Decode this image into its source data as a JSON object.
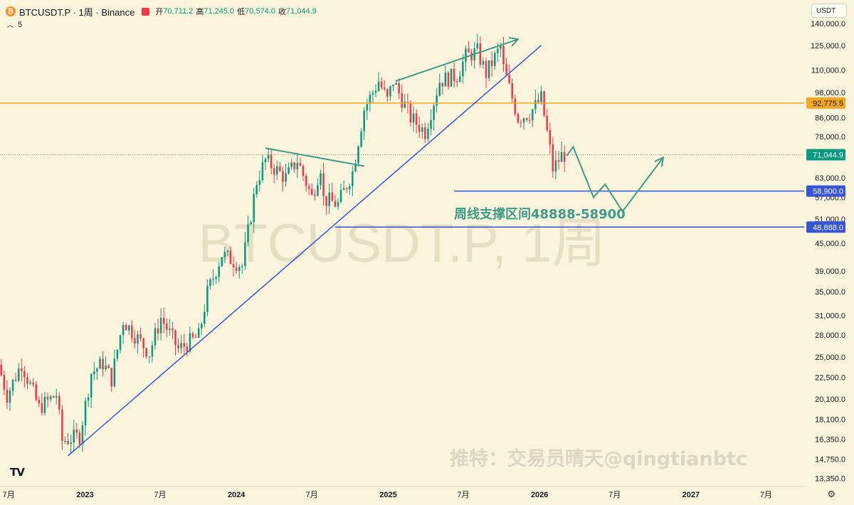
{
  "header": {
    "symbol": "BTCUSDT.P · 1周 · Binance",
    "icon": "bitcoin-icon",
    "ohlc": [
      {
        "key": "开",
        "value": "70,711.2"
      },
      {
        "key": "高",
        "value": "71,245.0"
      },
      {
        "key": "低",
        "value": "70,574.0"
      },
      {
        "key": "收",
        "value": "71,044.9"
      }
    ]
  },
  "indicator": {
    "value": "5"
  },
  "currency": {
    "selected": "USDT"
  },
  "watermark": {
    "text": "BTCUSDT.P, 1周"
  },
  "signature": {
    "text": "推特：交易员晴天@qingtianbtc"
  },
  "annotation": {
    "text": "周线支撑区间48888-58900"
  },
  "colors": {
    "background": "#faf4dc",
    "up": "#089981",
    "down": "#f23645",
    "trendline": "#3654d8",
    "resistance": "#f5a623",
    "projection": "#3f9a86"
  },
  "chart_data": {
    "type": "candlestick",
    "y_scale": "log",
    "ylim": [
      12800,
      158000
    ],
    "x_range": [
      "2022-06-10",
      "2027-10-01"
    ],
    "y_ticks": [
      {
        "value": 140000,
        "label": "140,000.0"
      },
      {
        "value": 125000,
        "label": "125,000.0"
      },
      {
        "value": 110000,
        "label": "110,000.0"
      },
      {
        "value": 98000,
        "label": "98,000.0"
      },
      {
        "value": 86000,
        "label": "86,000.0"
      },
      {
        "value": 78000,
        "label": "78,000.0"
      },
      {
        "value": 63000,
        "label": "63,000.0"
      },
      {
        "value": 57000,
        "label": "57,000.0"
      },
      {
        "value": 51000,
        "label": "51,000.0"
      },
      {
        "value": 45000,
        "label": "45,000.0"
      },
      {
        "value": 39000,
        "label": "39,000.0"
      },
      {
        "value": 35000,
        "label": "35,000.0"
      },
      {
        "value": 31000,
        "label": "31,000.0"
      },
      {
        "value": 28000,
        "label": "28,000.0"
      },
      {
        "value": 25000,
        "label": "25,000.0"
      },
      {
        "value": 22500,
        "label": "22,500.0"
      },
      {
        "value": 20100,
        "label": "20,100.0"
      },
      {
        "value": 18100,
        "label": "18,100.0"
      },
      {
        "value": 16350,
        "label": "16,350.0"
      },
      {
        "value": 14750,
        "label": "14,750.0"
      },
      {
        "value": 13350,
        "label": "13,350.0"
      }
    ],
    "x_ticks": [
      {
        "date": "2022-07-01",
        "label": "7月",
        "bold": false
      },
      {
        "date": "2023-01-01",
        "label": "2023",
        "bold": true
      },
      {
        "date": "2023-07-01",
        "label": "7月",
        "bold": false
      },
      {
        "date": "2024-01-01",
        "label": "2024",
        "bold": true
      },
      {
        "date": "2024-07-01",
        "label": "7月",
        "bold": false
      },
      {
        "date": "2025-01-01",
        "label": "2025",
        "bold": true
      },
      {
        "date": "2025-07-01",
        "label": "7月",
        "bold": false
      },
      {
        "date": "2026-01-01",
        "label": "2026",
        "bold": true
      },
      {
        "date": "2026-07-01",
        "label": "7月",
        "bold": false
      },
      {
        "date": "2027-01-01",
        "label": "2027",
        "bold": true
      },
      {
        "date": "2027-07-01",
        "label": "7月",
        "bold": false
      }
    ],
    "price_path": [
      [
        "2022-06-13",
        24000
      ],
      [
        "2022-07-04",
        20500
      ],
      [
        "2022-08-08",
        24200
      ],
      [
        "2022-09-19",
        19200
      ],
      [
        "2022-10-31",
        20600
      ],
      [
        "2022-11-14",
        16200
      ],
      [
        "2022-12-26",
        16600
      ],
      [
        "2023-01-23",
        23000
      ],
      [
        "2023-02-20",
        24200
      ],
      [
        "2023-03-13",
        22300
      ],
      [
        "2023-04-10",
        30200
      ],
      [
        "2023-06-12",
        25500
      ],
      [
        "2023-07-10",
        30600
      ],
      [
        "2023-08-21",
        26000
      ],
      [
        "2023-10-09",
        27800
      ],
      [
        "2023-10-30",
        34800
      ],
      [
        "2023-12-04",
        42500
      ],
      [
        "2024-01-22",
        40000
      ],
      [
        "2024-02-26",
        62000
      ],
      [
        "2024-03-18",
        69000
      ],
      [
        "2024-05-06",
        63000
      ],
      [
        "2024-06-03",
        69000
      ],
      [
        "2024-07-08",
        57000
      ],
      [
        "2024-07-29",
        67000
      ],
      [
        "2024-08-05",
        56500
      ],
      [
        "2024-09-09",
        55000
      ],
      [
        "2024-10-14",
        65000
      ],
      [
        "2024-11-11",
        90000
      ],
      [
        "2024-12-16",
        104000
      ],
      [
        "2025-01-06",
        94000
      ],
      [
        "2025-01-20",
        104000
      ],
      [
        "2025-03-03",
        86000
      ],
      [
        "2025-04-07",
        80000
      ],
      [
        "2025-05-12",
        104000
      ],
      [
        "2025-06-23",
        107000
      ],
      [
        "2025-07-14",
        118000
      ],
      [
        "2025-08-11",
        121000
      ],
      [
        "2025-09-01",
        108000
      ],
      [
        "2025-10-06",
        124000
      ],
      [
        "2025-10-13",
        111000
      ],
      [
        "2025-11-17",
        86000
      ],
      [
        "2025-12-15",
        88000
      ],
      [
        "2026-01-12",
        95000
      ],
      [
        "2026-02-02",
        73000
      ],
      [
        "2026-02-09",
        66000
      ],
      [
        "2026-03-02",
        70711.2
      ],
      [
        "2026-03-09",
        71044.9
      ]
    ],
    "last_price": {
      "value": 71044.9,
      "label": "71,044.9"
    },
    "horizontal_levels": [
      {
        "value": 92775.5,
        "label": "92,775.5",
        "color": "#f5a623",
        "start": "2022-06-10"
      },
      {
        "value": 58900,
        "label": "58,900.0",
        "color": "#3654d8",
        "start": "2025-06-09"
      },
      {
        "value": 48888,
        "label": "48,888.0",
        "color": "#3654d8",
        "start": "2024-08-26"
      }
    ],
    "trendline": {
      "points": [
        [
          "2022-11-21",
          15000
        ],
        [
          "2026-01-05",
          125000
        ]
      ],
      "color": "#3654d8"
    },
    "drawings": [
      {
        "type": "arrow",
        "color": "#3f9a86",
        "points": [
          [
            "2025-01-20",
            104000
          ],
          [
            "2025-11-10",
            129000
          ]
        ]
      },
      {
        "type": "line",
        "color": "#3f9a86",
        "points": [
          [
            "2024-03-11",
            73500
          ],
          [
            "2024-11-04",
            67000
          ]
        ]
      },
      {
        "type": "arrow",
        "color": "#3f9a86",
        "points": [
          [
            "2026-03-09",
            71000
          ],
          [
            "2026-03-23",
            74000
          ],
          [
            "2026-05-11",
            57000
          ],
          [
            "2026-06-08",
            61000
          ],
          [
            "2026-07-20",
            53000
          ],
          [
            "2026-10-26",
            70000
          ]
        ]
      }
    ]
  }
}
